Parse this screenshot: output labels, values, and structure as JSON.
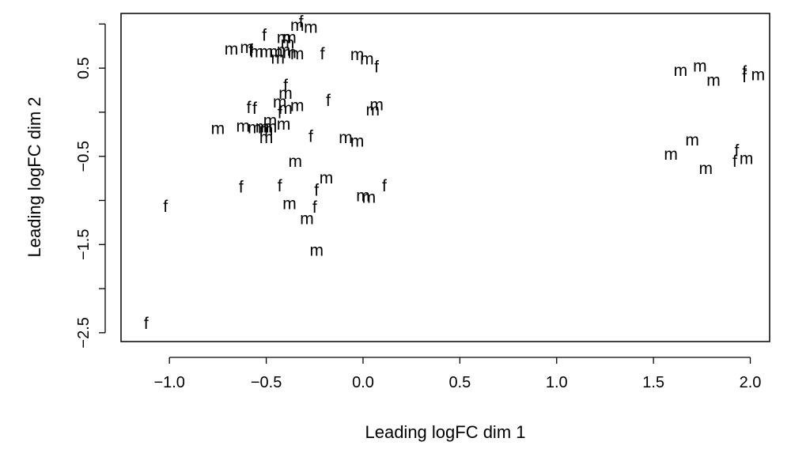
{
  "chart_data": {
    "type": "scatter",
    "title": "",
    "xlabel": "Leading logFC dim 1",
    "ylabel": "Leading logFC dim 2",
    "xlim": [
      -1.25,
      2.1
    ],
    "ylim": [
      -2.6,
      1.12
    ],
    "x_ticks": [
      -1.0,
      -0.5,
      0.0,
      0.5,
      1.0,
      1.5,
      2.0
    ],
    "x_tick_labels": [
      "−1.0",
      "−0.5",
      "0.0",
      "0.5",
      "1.0",
      "1.5",
      "2.0"
    ],
    "y_ticks": [
      -2.5,
      -2.0,
      -1.5,
      -1.0,
      -0.5,
      0.0,
      0.5,
      1.0
    ],
    "y_tick_labels": [
      "−2.5",
      "",
      "−1.5",
      "",
      "−0.5",
      "",
      "0.5",
      ""
    ],
    "grid": false,
    "points": [
      {
        "x": -0.34,
        "y": 0.98,
        "label": "m"
      },
      {
        "x": -0.32,
        "y": 1.02,
        "label": "f"
      },
      {
        "x": -0.27,
        "y": 0.96,
        "label": "m"
      },
      {
        "x": -0.51,
        "y": 0.87,
        "label": "f"
      },
      {
        "x": -0.41,
        "y": 0.84,
        "label": "m"
      },
      {
        "x": -0.38,
        "y": 0.84,
        "label": "m"
      },
      {
        "x": -0.39,
        "y": 0.78,
        "label": "m"
      },
      {
        "x": -0.68,
        "y": 0.71,
        "label": "m"
      },
      {
        "x": -0.6,
        "y": 0.73,
        "label": "m"
      },
      {
        "x": -0.58,
        "y": 0.7,
        "label": "f"
      },
      {
        "x": -0.55,
        "y": 0.68,
        "label": "m"
      },
      {
        "x": -0.5,
        "y": 0.68,
        "label": "m"
      },
      {
        "x": -0.45,
        "y": 0.68,
        "label": "m"
      },
      {
        "x": -0.41,
        "y": 0.7,
        "label": "m"
      },
      {
        "x": -0.38,
        "y": 0.67,
        "label": "m"
      },
      {
        "x": -0.34,
        "y": 0.66,
        "label": "m"
      },
      {
        "x": -0.44,
        "y": 0.61,
        "label": "m"
      },
      {
        "x": -0.21,
        "y": 0.66,
        "label": "f"
      },
      {
        "x": -0.03,
        "y": 0.65,
        "label": "m"
      },
      {
        "x": 0.02,
        "y": 0.6,
        "label": "m"
      },
      {
        "x": 0.07,
        "y": 0.51,
        "label": "f"
      },
      {
        "x": -0.4,
        "y": 0.3,
        "label": "f"
      },
      {
        "x": -0.4,
        "y": 0.21,
        "label": "m"
      },
      {
        "x": -0.43,
        "y": 0.11,
        "label": "m"
      },
      {
        "x": -0.18,
        "y": 0.13,
        "label": "f"
      },
      {
        "x": -0.59,
        "y": 0.05,
        "label": "f"
      },
      {
        "x": -0.56,
        "y": 0.04,
        "label": "f"
      },
      {
        "x": -0.4,
        "y": 0.04,
        "label": "m"
      },
      {
        "x": -0.34,
        "y": 0.07,
        "label": "m"
      },
      {
        "x": 0.07,
        "y": 0.08,
        "label": "m"
      },
      {
        "x": 0.05,
        "y": 0.02,
        "label": "m"
      },
      {
        "x": -0.43,
        "y": -0.01,
        "label": "f"
      },
      {
        "x": -0.48,
        "y": -0.1,
        "label": "m"
      },
      {
        "x": -0.75,
        "y": -0.19,
        "label": "m"
      },
      {
        "x": -0.62,
        "y": -0.16,
        "label": "m"
      },
      {
        "x": -0.56,
        "y": -0.18,
        "label": "m"
      },
      {
        "x": -0.52,
        "y": -0.17,
        "label": "m"
      },
      {
        "x": -0.5,
        "y": -0.2,
        "label": "m"
      },
      {
        "x": -0.48,
        "y": -0.17,
        "label": "m"
      },
      {
        "x": -0.41,
        "y": -0.14,
        "label": "m"
      },
      {
        "x": -0.5,
        "y": -0.29,
        "label": "m"
      },
      {
        "x": -0.27,
        "y": -0.28,
        "label": "f"
      },
      {
        "x": -0.09,
        "y": -0.29,
        "label": "m"
      },
      {
        "x": -0.03,
        "y": -0.33,
        "label": "m"
      },
      {
        "x": -0.35,
        "y": -0.56,
        "label": "m"
      },
      {
        "x": -0.63,
        "y": -0.85,
        "label": "f"
      },
      {
        "x": -0.43,
        "y": -0.84,
        "label": "f"
      },
      {
        "x": -0.19,
        "y": -0.75,
        "label": "m"
      },
      {
        "x": -0.24,
        "y": -0.89,
        "label": "f"
      },
      {
        "x": 0.0,
        "y": -0.95,
        "label": "m"
      },
      {
        "x": 0.03,
        "y": -0.97,
        "label": "m"
      },
      {
        "x": 0.11,
        "y": -0.84,
        "label": "f"
      },
      {
        "x": -0.38,
        "y": -1.04,
        "label": "m"
      },
      {
        "x": -0.25,
        "y": -1.08,
        "label": "f"
      },
      {
        "x": -0.29,
        "y": -1.21,
        "label": "m"
      },
      {
        "x": -1.02,
        "y": -1.07,
        "label": "f"
      },
      {
        "x": -0.24,
        "y": -1.57,
        "label": "m"
      },
      {
        "x": -1.12,
        "y": -2.4,
        "label": "f"
      },
      {
        "x": 1.64,
        "y": 0.47,
        "label": "m"
      },
      {
        "x": 1.74,
        "y": 0.52,
        "label": "m"
      },
      {
        "x": 1.81,
        "y": 0.36,
        "label": "m"
      },
      {
        "x": 1.97,
        "y": 0.45,
        "label": "f"
      },
      {
        "x": 1.97,
        "y": 0.4,
        "label": "f"
      },
      {
        "x": 2.04,
        "y": 0.42,
        "label": "m"
      },
      {
        "x": 1.7,
        "y": -0.32,
        "label": "m"
      },
      {
        "x": 1.59,
        "y": -0.48,
        "label": "m"
      },
      {
        "x": 1.93,
        "y": -0.44,
        "label": "f"
      },
      {
        "x": 1.92,
        "y": -0.56,
        "label": "f"
      },
      {
        "x": 1.98,
        "y": -0.53,
        "label": "m"
      },
      {
        "x": 1.77,
        "y": -0.64,
        "label": "m"
      }
    ]
  }
}
